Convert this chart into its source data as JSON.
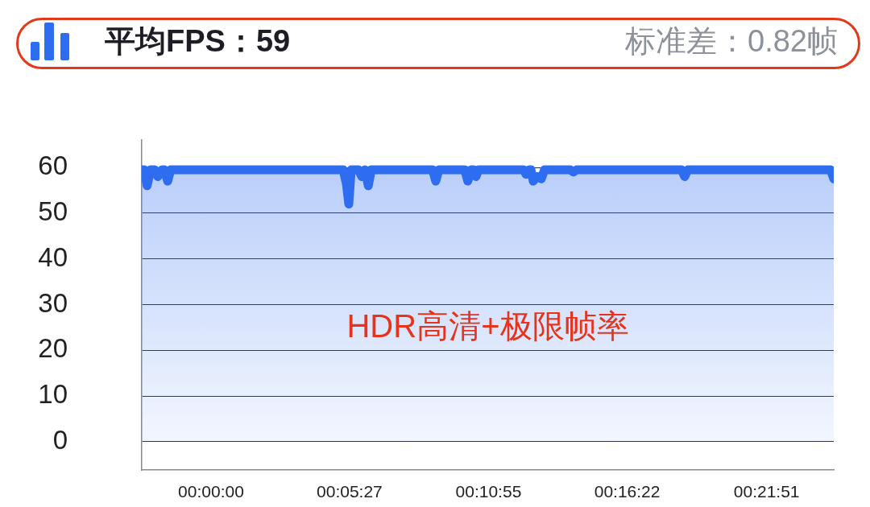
{
  "chart_data": {
    "type": "area",
    "title": "平均FPS：59",
    "subtitle": "标准差：0.82帧",
    "annotations": [
      "HDR高清+极限帧率"
    ],
    "x": [
      -0.0454,
      -0.0438,
      -0.0419,
      -0.0396,
      -0.037,
      -0.0349,
      -0.0322,
      -0.0306,
      -0.0284,
      -0.0264,
      0.0866,
      0.0887,
      0.0903,
      0.0919,
      0.0966,
      0.0988,
      0.1009,
      0.1031,
      0.1051,
      0.1452,
      0.1473,
      0.1494,
      0.1663,
      0.1683,
      0.1706,
      0.1722,
      0.1737,
      0.1753,
      0.2049,
      0.2065,
      0.2086,
      0.2097,
      0.2112,
      0.2139,
      0.2165,
      0.2186,
      0.2355,
      0.2376,
      0.2397,
      0.3084,
      0.3105,
      0.3126,
      0.4061,
      0.4082
    ],
    "values": [
      59.5,
      59.5,
      56,
      59.5,
      59.5,
      58,
      59.5,
      59.5,
      57,
      59.5,
      59.5,
      56.5,
      52,
      59.5,
      59.5,
      58,
      59.5,
      56,
      59.5,
      59.5,
      57,
      59.5,
      59.5,
      57,
      59.5,
      59.5,
      58,
      59.5,
      59.5,
      58.5,
      59.5,
      59.5,
      57,
      58,
      57.5,
      59.5,
      59.5,
      59,
      59.5,
      59.5,
      58,
      59.5,
      59.5,
      57.5
    ],
    "color": "#2f6df0",
    "xlim": [
      -0.0454,
      0.4082
    ],
    "xticks": [
      {
        "value": 0,
        "label": "00:00:00"
      },
      {
        "value": 0.0908,
        "label": "00:05:27"
      },
      {
        "value": 0.1819,
        "label": "00:10:55"
      },
      {
        "value": 0.2728,
        "label": "00:16:22"
      },
      {
        "value": 0.3642,
        "label": "00:21:51"
      }
    ],
    "ylim": [
      -6.2,
      66
    ],
    "yticks": [
      0,
      10,
      20,
      30,
      40,
      50,
      60
    ],
    "grid": "y",
    "marker": "none"
  }
}
